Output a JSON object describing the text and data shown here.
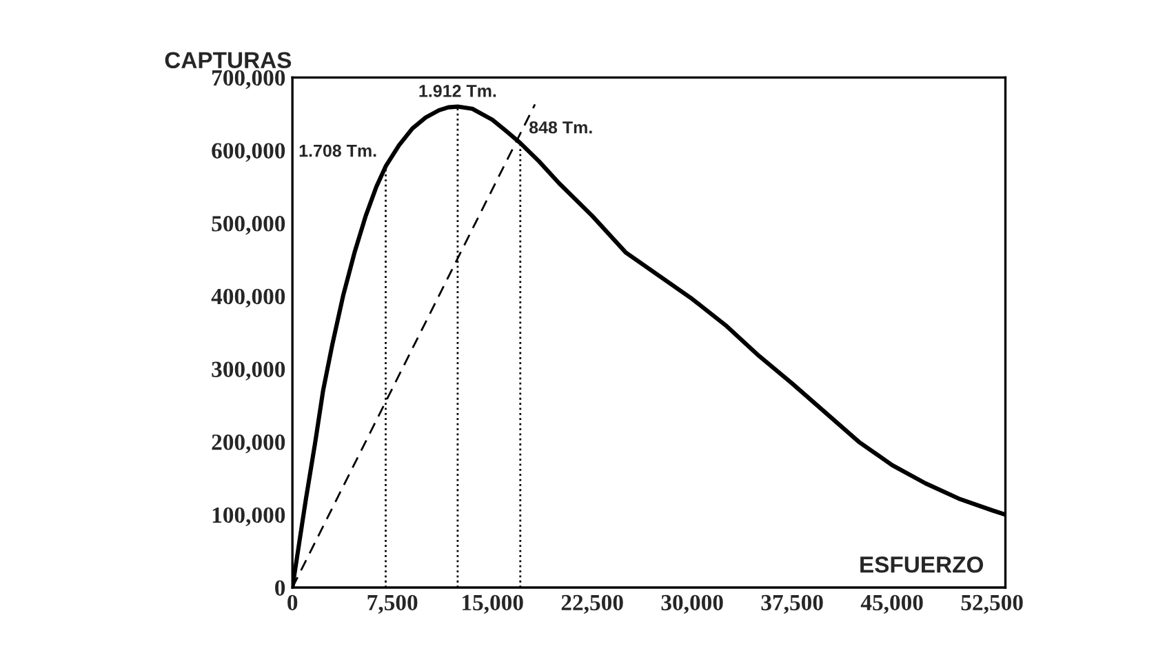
{
  "chart_data": {
    "type": "line",
    "ylabel": "CAPTURAS",
    "xlabel": "ESFUERZO",
    "series": [
      {
        "color": "#000000",
        "line_style": "solid",
        "x": [
          0,
          500,
          1000,
          1700,
          2300,
          3000,
          3800,
          4650,
          5500,
          6300,
          7000,
          8000,
          9000,
          10000,
          11000,
          11700,
          12400,
          13500,
          15000,
          16000,
          17100,
          18500,
          20000,
          22500,
          25000,
          27500,
          30000,
          32500,
          35000,
          37500,
          40000,
          42500,
          45000,
          47500,
          50000,
          52500,
          53500
        ],
        "values": [
          0,
          60000,
          120000,
          198000,
          270000,
          334000,
          400000,
          459000,
          510000,
          550000,
          578000,
          607000,
          630000,
          645000,
          655000,
          659000,
          660000,
          657000,
          642000,
          627000,
          610000,
          585000,
          555000,
          510000,
          460000,
          428000,
          396000,
          360000,
          318000,
          280000,
          240000,
          200000,
          168000,
          143000,
          122000,
          106000,
          100000
        ]
      },
      {
        "color": "#000000",
        "line_style": "dashed",
        "x": [
          0,
          18200
        ],
        "values": [
          0,
          663000
        ]
      }
    ],
    "ref_lines": [
      {
        "axis": "x",
        "value": 7000,
        "label": "1.708 Tm.",
        "line_style": "dotted",
        "color": "#000000"
      },
      {
        "axis": "x",
        "value": 12400,
        "label": "1.912 Tm.",
        "line_style": "dotted",
        "color": "#000000"
      },
      {
        "axis": "x",
        "value": 17100,
        "label": "848 Tm.",
        "line_style": "dotted",
        "color": "#000000"
      }
    ],
    "xlim": [
      0,
      53500
    ],
    "ylim": [
      0,
      700000
    ],
    "xticks": [
      {
        "value": 0,
        "label": "0"
      },
      {
        "value": 7500,
        "label": "7,500"
      },
      {
        "value": 15000,
        "label": "15,000"
      },
      {
        "value": 22500,
        "label": "22,500"
      },
      {
        "value": 30000,
        "label": "30,000"
      },
      {
        "value": 37500,
        "label": "37,500"
      },
      {
        "value": 45000,
        "label": "45,000"
      },
      {
        "value": 52500,
        "label": "52,500"
      }
    ],
    "yticks": [
      {
        "value": 0,
        "label": "0"
      },
      {
        "value": 100000,
        "label": "100,000"
      },
      {
        "value": 200000,
        "label": "200,000"
      },
      {
        "value": 300000,
        "label": "300,000"
      },
      {
        "value": 400000,
        "label": "400,000"
      },
      {
        "value": 500000,
        "label": "500,000"
      },
      {
        "value": 600000,
        "label": "600,000"
      },
      {
        "value": 700000,
        "label": "700,000"
      }
    ],
    "grid": false
  }
}
